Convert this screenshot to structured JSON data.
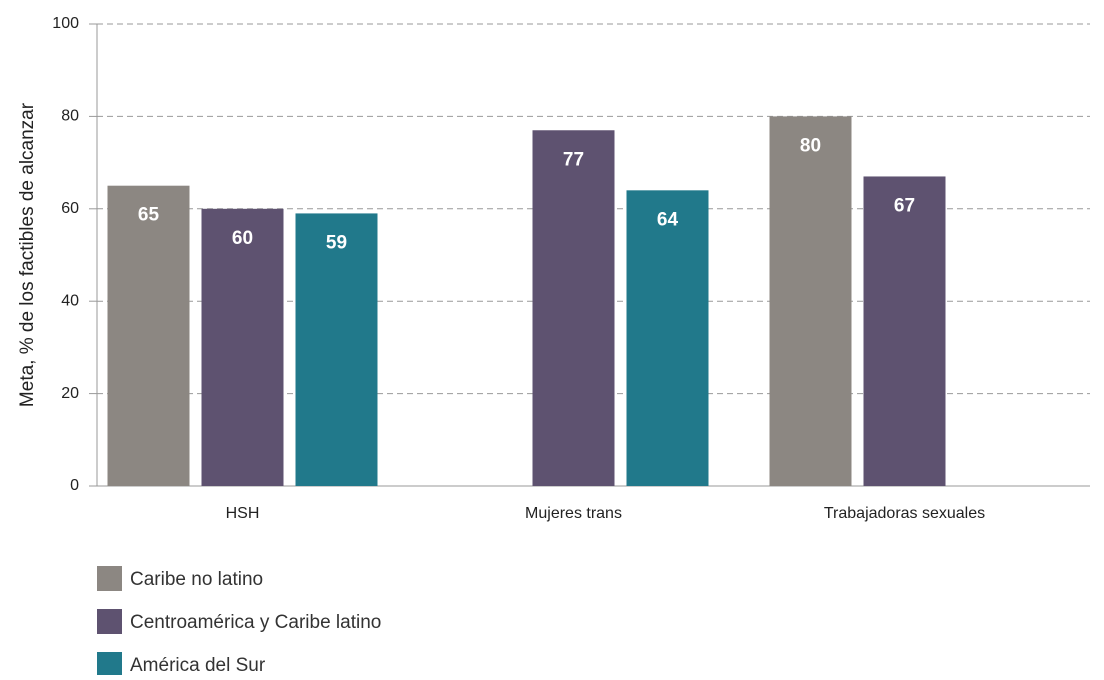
{
  "chart_data": {
    "type": "bar",
    "y_label": "Meta, % de los factibles de alcanzar",
    "categories": [
      "HSH",
      "Mujeres trans",
      "Trabajadoras sexuales"
    ],
    "series": [
      {
        "name": "Caribe no latino",
        "color": "#8c8782",
        "values": [
          65,
          null,
          80
        ]
      },
      {
        "name": "Centroamérica y Caribe latino",
        "color": "#5e5270",
        "values": [
          60,
          77,
          67
        ]
      },
      {
        "name": "América del Sur",
        "color": "#21798b",
        "values": [
          59,
          64,
          null
        ]
      }
    ],
    "ylim": [
      0,
      100
    ],
    "yticks": [
      0,
      20,
      40,
      60,
      80,
      100
    ],
    "grid": true,
    "legend": "bottom-left"
  }
}
